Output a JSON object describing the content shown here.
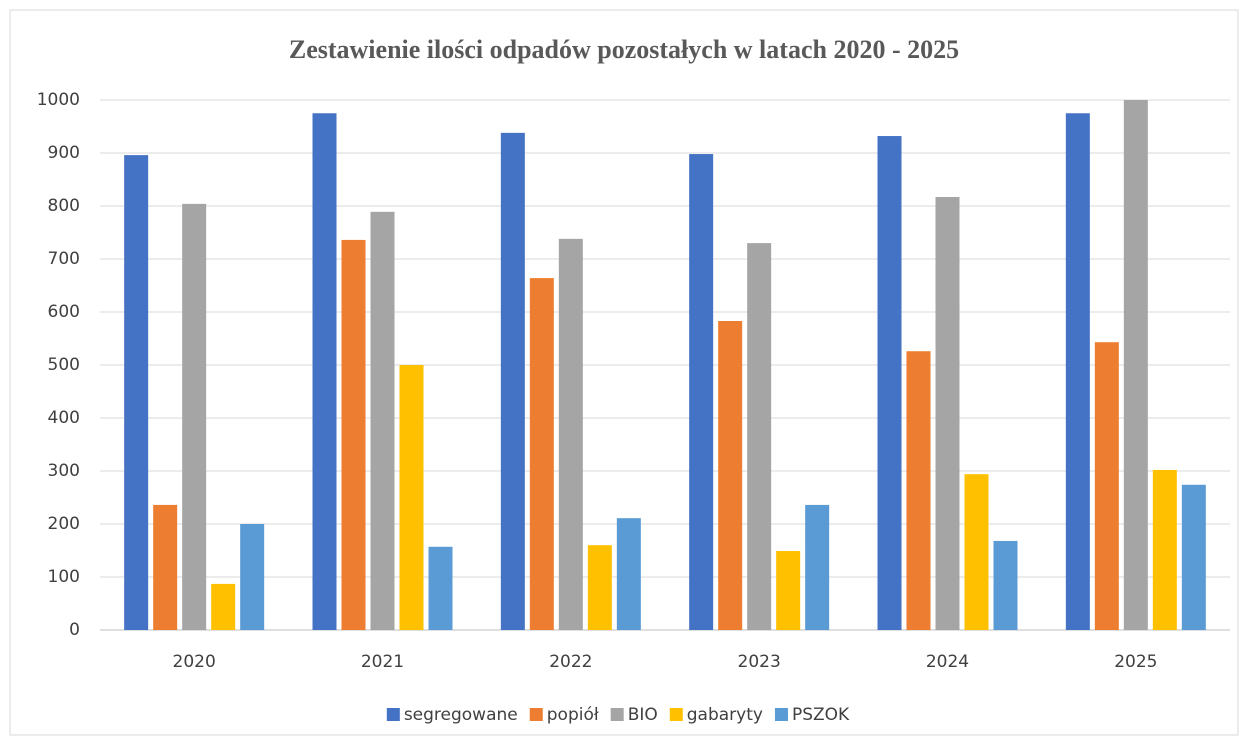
{
  "chart_data": {
    "type": "bar",
    "title": "Zestawienie ilości odpadów pozostałych w latach 2020 - 2025",
    "categories": [
      "2020",
      "2021",
      "2022",
      "2023",
      "2024",
      "2025"
    ],
    "series": [
      {
        "name": "segregowane",
        "color": "#4472c4",
        "values": [
          896,
          975,
          938,
          898,
          932,
          975
        ]
      },
      {
        "name": "popiół",
        "color": "#ed7d31",
        "values": [
          236,
          736,
          664,
          583,
          526,
          543
        ]
      },
      {
        "name": "BIO",
        "color": "#a5a5a5",
        "values": [
          804,
          789,
          738,
          730,
          817,
          1000
        ]
      },
      {
        "name": "gabaryty",
        "color": "#ffc000",
        "values": [
          87,
          500,
          160,
          149,
          294,
          302
        ]
      },
      {
        "name": "PSZOK",
        "color": "#5b9bd5",
        "values": [
          200,
          157,
          211,
          236,
          168,
          274
        ]
      }
    ],
    "ylim": [
      0,
      1000
    ],
    "yticks": [
      0,
      100,
      200,
      300,
      400,
      500,
      600,
      700,
      800,
      900,
      1000
    ],
    "grid": true,
    "legend": "bottom"
  }
}
